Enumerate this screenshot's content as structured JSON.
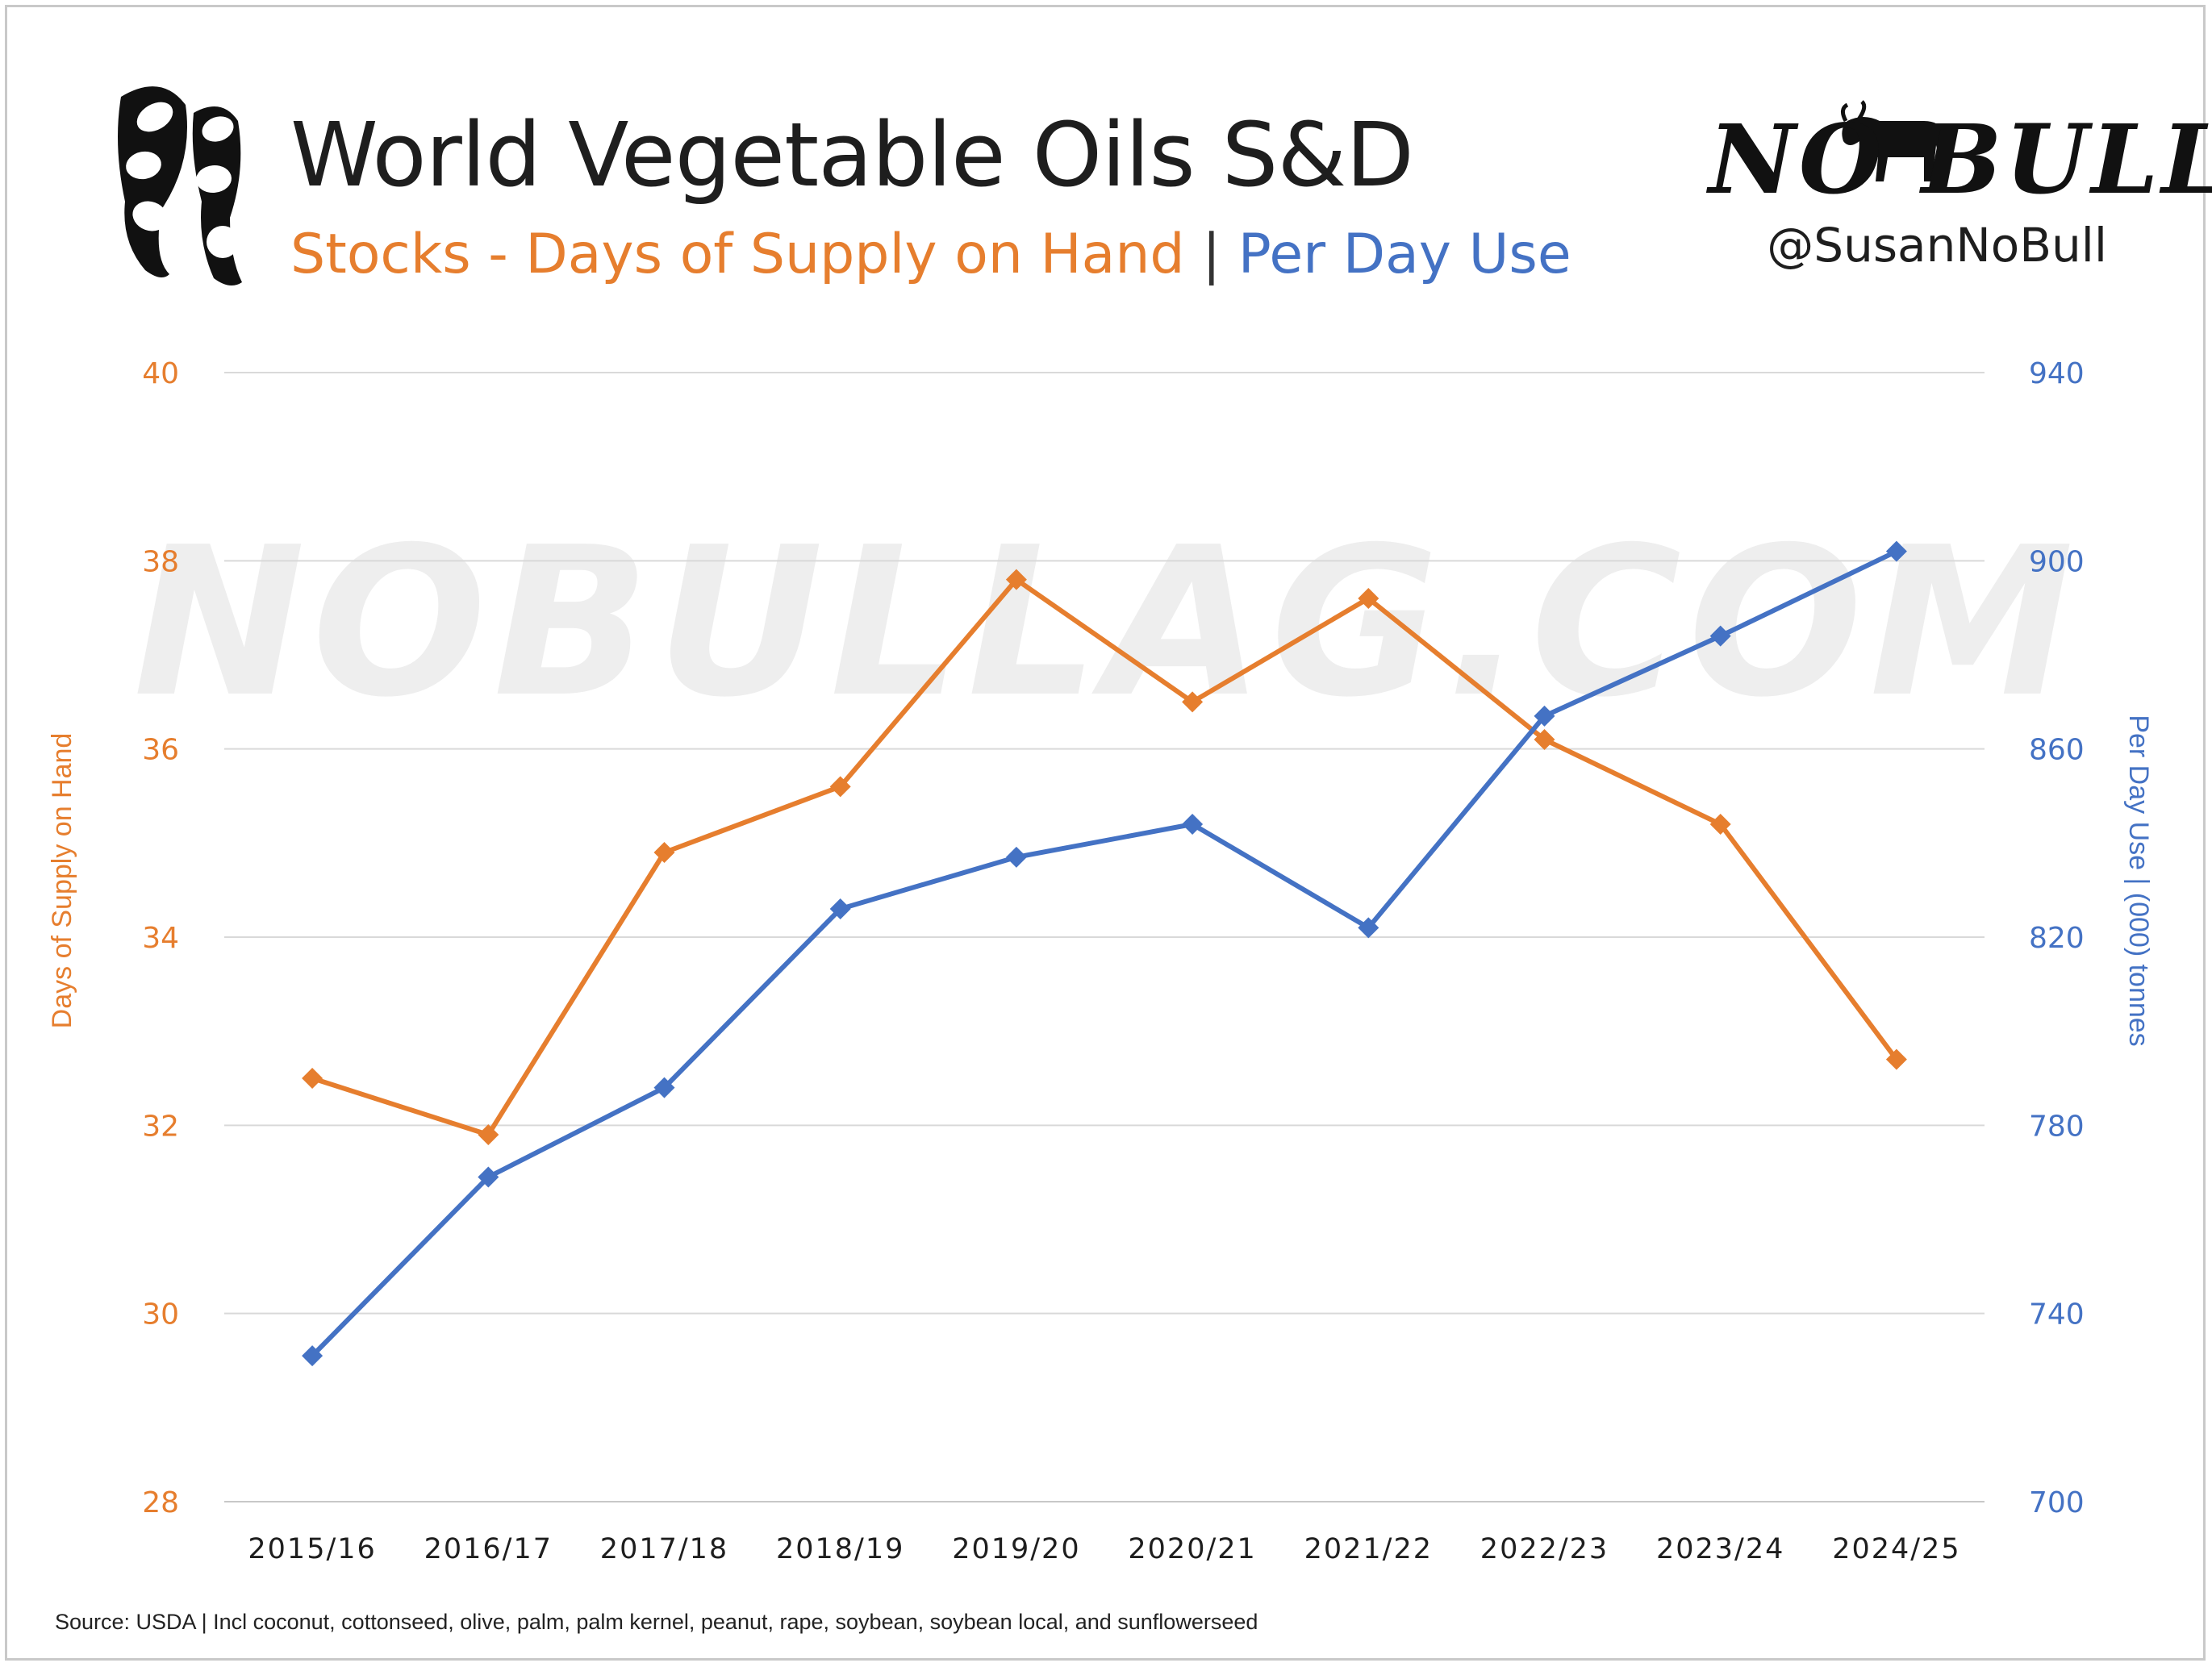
{
  "header": {
    "title": "World Vegetable Oils S&D",
    "subtitle_part1": "Stocks - Days of Supply on Hand",
    "subtitle_sep": "|",
    "subtitle_part2": "Per Day Use",
    "brand": "NO BULL",
    "handle": "@SusanNoBull"
  },
  "watermark": "NOBULLAG.COM",
  "footer": {
    "source": "Source: USDA | Incl coconut, cottonseed, olive, palm, palm kernel, peanut, rape, soybean, soybean local, and sunflowerseed"
  },
  "colors": {
    "orange": "#e67e2e",
    "blue": "#4472c4",
    "grid": "#d9d9d9",
    "watermark": "#efefef"
  },
  "chart_data": {
    "type": "line",
    "categories": [
      "2015/16",
      "2016/17",
      "2017/18",
      "2018/19",
      "2019/20",
      "2020/21",
      "2021/22",
      "2022/23",
      "2023/24",
      "2024/25"
    ],
    "series": [
      {
        "name": "Stocks - Days of Supply on Hand",
        "axis": "left",
        "color": "#e67e2e",
        "marker": "diamond",
        "values": [
          32.5,
          31.9,
          34.9,
          35.6,
          37.8,
          36.5,
          37.6,
          36.1,
          35.2,
          32.7
        ]
      },
      {
        "name": "Per Day Use",
        "axis": "right",
        "color": "#4472c4",
        "marker": "diamond",
        "values": [
          731,
          769,
          788,
          826,
          837,
          844,
          822,
          867,
          884,
          902
        ]
      }
    ],
    "left_axis": {
      "label": "Days of Supply on Hand",
      "ylim": [
        28,
        40
      ],
      "ticks": [
        28,
        30,
        32,
        34,
        36,
        38,
        40
      ]
    },
    "right_axis": {
      "label": "Per Day Use | (000) tonnes",
      "ylim": [
        700,
        940
      ],
      "ticks": [
        700,
        740,
        780,
        820,
        860,
        900,
        940
      ]
    },
    "grid": true,
    "legend": "none"
  }
}
